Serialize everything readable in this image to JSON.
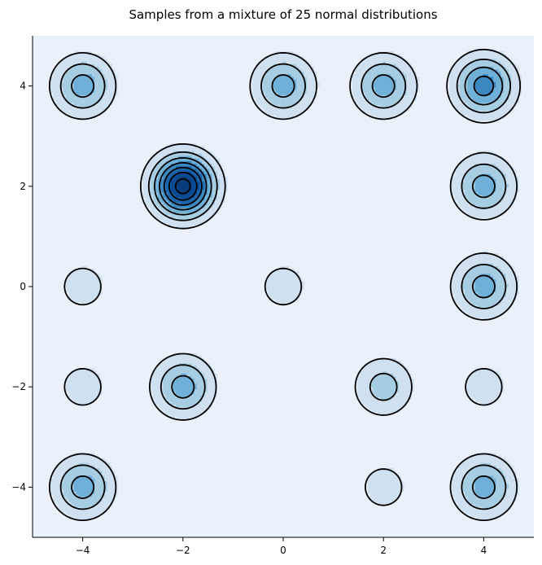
{
  "chart_data": {
    "type": "contour",
    "title": "Samples from a mixture of 25 normal distributions",
    "xlabel": "",
    "ylabel": "",
    "xlim": [
      -5,
      5
    ],
    "ylim": [
      -5,
      5
    ],
    "xticks": [
      -4,
      -2,
      0,
      2,
      4
    ],
    "yticks": [
      -4,
      -2,
      0,
      2,
      4
    ],
    "xtick_labels": [
      "−4",
      "−2",
      "0",
      "2",
      "4"
    ],
    "ytick_labels": [
      "−4",
      "−2",
      "0",
      "2",
      "4"
    ],
    "grid": false,
    "colormap": "Blues",
    "background_color": "#eaf1fb",
    "contour_line_color": "#000000",
    "level_colors": [
      "#cfe0f1",
      "#a6cde2",
      "#6fb0d8",
      "#3b87c0",
      "#1a65ad",
      "#084b93",
      "#083c7b"
    ],
    "component_means": [
      {
        "x": -4,
        "y": 4,
        "density_level": 3
      },
      {
        "x": 0,
        "y": 4,
        "density_level": 3
      },
      {
        "x": 2,
        "y": 4,
        "density_level": 3
      },
      {
        "x": 4,
        "y": 4,
        "density_level": 4
      },
      {
        "x": -2,
        "y": 2,
        "density_level": 7
      },
      {
        "x": 4,
        "y": 2,
        "density_level": 3
      },
      {
        "x": -4,
        "y": 0,
        "density_level": 1
      },
      {
        "x": 0,
        "y": 0,
        "density_level": 1
      },
      {
        "x": 4,
        "y": 0,
        "density_level": 3
      },
      {
        "x": -4,
        "y": -2,
        "density_level": 1
      },
      {
        "x": -2,
        "y": -2,
        "density_level": 3
      },
      {
        "x": 2,
        "y": -2,
        "density_level": 2
      },
      {
        "x": 4,
        "y": -2,
        "density_level": 1
      },
      {
        "x": -4,
        "y": -4,
        "density_level": 3
      },
      {
        "x": 2,
        "y": -4,
        "density_level": 1
      },
      {
        "x": 4,
        "y": -4,
        "density_level": 3
      }
    ]
  }
}
